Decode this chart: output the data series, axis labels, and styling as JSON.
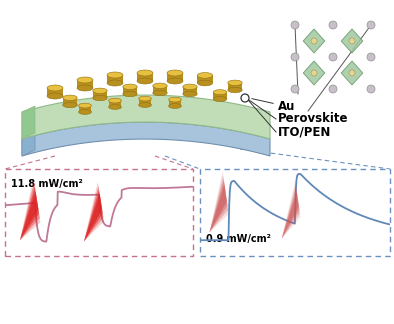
{
  "bg_color": "#ffffff",
  "left_box_color": "#c87090",
  "right_box_color": "#6a90c0",
  "left_label": "11.8 mW/cm²",
  "right_label": "0.9 mW/cm²",
  "au_label": "Au",
  "perovskite_label": "Perovskite",
  "ito_label": "ITO/PEN",
  "device_green": "#c0ddb8",
  "device_green_edge": "#90b888",
  "device_blue": "#a8c4dc",
  "device_blue_edge": "#7090b0",
  "device_gold_top": "#e8c040",
  "device_gold_side": "#b89020",
  "device_gold_edge": "#907010",
  "crystal_green": "#a0c8a0",
  "crystal_green_edge": "#609060",
  "crystal_gray": "#c8c0c8",
  "crystal_gray_edge": "#909090",
  "crystal_yellow": "#e0d890",
  "left_curve_color": "#c07898",
  "right_curve_color": "#6088b8",
  "connector_color_left": "#c87090",
  "connector_color_right": "#6a90c0"
}
